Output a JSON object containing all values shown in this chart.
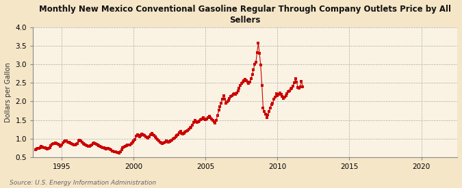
{
  "title": "Monthly New Mexico Conventional Gasoline Regular Through Company Outlets Price by All\nSellers",
  "ylabel": "Dollars per Gallon",
  "source": "Source: U.S. Energy Information Administration",
  "bg_color": "#F5E6C8",
  "plot_bg_color": "#FAF3E3",
  "marker_color": "#CC0000",
  "line_color": "#CC0000",
  "xlim": [
    1993.0,
    2022.5
  ],
  "ylim": [
    0.5,
    4.0
  ],
  "yticks": [
    0.5,
    1.0,
    1.5,
    2.0,
    2.5,
    3.0,
    3.5,
    4.0
  ],
  "xticks": [
    1995,
    2000,
    2005,
    2010,
    2015,
    2020
  ],
  "data": [
    [
      1993.17,
      0.69
    ],
    [
      1993.25,
      0.72
    ],
    [
      1993.33,
      0.74
    ],
    [
      1993.42,
      0.74
    ],
    [
      1993.5,
      0.76
    ],
    [
      1993.58,
      0.8
    ],
    [
      1993.67,
      0.78
    ],
    [
      1993.75,
      0.76
    ],
    [
      1993.83,
      0.75
    ],
    [
      1993.92,
      0.73
    ],
    [
      1994.0,
      0.72
    ],
    [
      1994.08,
      0.74
    ],
    [
      1994.17,
      0.76
    ],
    [
      1994.25,
      0.81
    ],
    [
      1994.33,
      0.84
    ],
    [
      1994.42,
      0.86
    ],
    [
      1994.5,
      0.87
    ],
    [
      1994.58,
      0.88
    ],
    [
      1994.67,
      0.86
    ],
    [
      1994.75,
      0.84
    ],
    [
      1994.83,
      0.82
    ],
    [
      1994.92,
      0.8
    ],
    [
      1995.0,
      0.82
    ],
    [
      1995.08,
      0.88
    ],
    [
      1995.17,
      0.92
    ],
    [
      1995.25,
      0.94
    ],
    [
      1995.33,
      0.93
    ],
    [
      1995.42,
      0.91
    ],
    [
      1995.5,
      0.9
    ],
    [
      1995.58,
      0.88
    ],
    [
      1995.67,
      0.86
    ],
    [
      1995.75,
      0.84
    ],
    [
      1995.83,
      0.83
    ],
    [
      1995.92,
      0.82
    ],
    [
      1996.0,
      0.84
    ],
    [
      1996.08,
      0.87
    ],
    [
      1996.17,
      0.93
    ],
    [
      1996.25,
      0.95
    ],
    [
      1996.33,
      0.93
    ],
    [
      1996.42,
      0.9
    ],
    [
      1996.5,
      0.87
    ],
    [
      1996.58,
      0.85
    ],
    [
      1996.67,
      0.83
    ],
    [
      1996.75,
      0.81
    ],
    [
      1996.83,
      0.8
    ],
    [
      1996.92,
      0.79
    ],
    [
      1997.0,
      0.81
    ],
    [
      1997.08,
      0.83
    ],
    [
      1997.17,
      0.87
    ],
    [
      1997.25,
      0.89
    ],
    [
      1997.33,
      0.87
    ],
    [
      1997.42,
      0.85
    ],
    [
      1997.5,
      0.83
    ],
    [
      1997.58,
      0.81
    ],
    [
      1997.67,
      0.79
    ],
    [
      1997.75,
      0.77
    ],
    [
      1997.83,
      0.76
    ],
    [
      1997.92,
      0.75
    ],
    [
      1998.0,
      0.73
    ],
    [
      1998.08,
      0.72
    ],
    [
      1998.17,
      0.74
    ],
    [
      1998.25,
      0.73
    ],
    [
      1998.33,
      0.71
    ],
    [
      1998.42,
      0.69
    ],
    [
      1998.5,
      0.67
    ],
    [
      1998.58,
      0.66
    ],
    [
      1998.67,
      0.65
    ],
    [
      1998.75,
      0.64
    ],
    [
      1998.83,
      0.63
    ],
    [
      1998.92,
      0.62
    ],
    [
      1999.0,
      0.61
    ],
    [
      1999.08,
      0.64
    ],
    [
      1999.17,
      0.7
    ],
    [
      1999.25,
      0.75
    ],
    [
      1999.33,
      0.77
    ],
    [
      1999.42,
      0.79
    ],
    [
      1999.5,
      0.81
    ],
    [
      1999.58,
      0.83
    ],
    [
      1999.67,
      0.82
    ],
    [
      1999.75,
      0.83
    ],
    [
      1999.83,
      0.86
    ],
    [
      1999.92,
      0.91
    ],
    [
      2000.0,
      0.94
    ],
    [
      2000.08,
      0.97
    ],
    [
      2000.17,
      1.06
    ],
    [
      2000.25,
      1.1
    ],
    [
      2000.33,
      1.08
    ],
    [
      2000.42,
      1.05
    ],
    [
      2000.5,
      1.09
    ],
    [
      2000.58,
      1.12
    ],
    [
      2000.67,
      1.1
    ],
    [
      2000.75,
      1.08
    ],
    [
      2000.83,
      1.05
    ],
    [
      2000.92,
      1.03
    ],
    [
      2001.0,
      1.02
    ],
    [
      2001.08,
      1.05
    ],
    [
      2001.17,
      1.1
    ],
    [
      2001.25,
      1.14
    ],
    [
      2001.33,
      1.1
    ],
    [
      2001.42,
      1.08
    ],
    [
      2001.5,
      1.05
    ],
    [
      2001.58,
      1.02
    ],
    [
      2001.67,
      0.98
    ],
    [
      2001.75,
      0.94
    ],
    [
      2001.83,
      0.91
    ],
    [
      2001.92,
      0.88
    ],
    [
      2002.0,
      0.87
    ],
    [
      2002.08,
      0.89
    ],
    [
      2002.17,
      0.91
    ],
    [
      2002.25,
      0.93
    ],
    [
      2002.33,
      0.92
    ],
    [
      2002.42,
      0.9
    ],
    [
      2002.5,
      0.92
    ],
    [
      2002.58,
      0.94
    ],
    [
      2002.67,
      0.96
    ],
    [
      2002.75,
      0.99
    ],
    [
      2002.83,
      1.01
    ],
    [
      2002.92,
      1.04
    ],
    [
      2003.0,
      1.08
    ],
    [
      2003.08,
      1.11
    ],
    [
      2003.17,
      1.16
    ],
    [
      2003.25,
      1.19
    ],
    [
      2003.33,
      1.14
    ],
    [
      2003.42,
      1.12
    ],
    [
      2003.5,
      1.14
    ],
    [
      2003.58,
      1.18
    ],
    [
      2003.67,
      1.2
    ],
    [
      2003.75,
      1.22
    ],
    [
      2003.83,
      1.25
    ],
    [
      2003.92,
      1.28
    ],
    [
      2004.0,
      1.31
    ],
    [
      2004.08,
      1.36
    ],
    [
      2004.17,
      1.43
    ],
    [
      2004.25,
      1.49
    ],
    [
      2004.33,
      1.46
    ],
    [
      2004.42,
      1.43
    ],
    [
      2004.5,
      1.45
    ],
    [
      2004.58,
      1.48
    ],
    [
      2004.67,
      1.51
    ],
    [
      2004.75,
      1.53
    ],
    [
      2004.83,
      1.56
    ],
    [
      2004.92,
      1.53
    ],
    [
      2005.0,
      1.51
    ],
    [
      2005.08,
      1.53
    ],
    [
      2005.17,
      1.56
    ],
    [
      2005.25,
      1.61
    ],
    [
      2005.33,
      1.56
    ],
    [
      2005.42,
      1.52
    ],
    [
      2005.5,
      1.49
    ],
    [
      2005.58,
      1.45
    ],
    [
      2005.67,
      1.42
    ],
    [
      2005.75,
      1.5
    ],
    [
      2005.83,
      1.62
    ],
    [
      2005.92,
      1.76
    ],
    [
      2006.0,
      1.86
    ],
    [
      2006.08,
      1.96
    ],
    [
      2006.17,
      2.06
    ],
    [
      2006.25,
      2.16
    ],
    [
      2006.33,
      2.06
    ],
    [
      2006.42,
      1.96
    ],
    [
      2006.5,
      1.99
    ],
    [
      2006.58,
      2.03
    ],
    [
      2006.67,
      2.09
    ],
    [
      2006.75,
      2.13
    ],
    [
      2006.83,
      2.16
    ],
    [
      2006.92,
      2.19
    ],
    [
      2007.0,
      2.21
    ],
    [
      2007.08,
      2.19
    ],
    [
      2007.17,
      2.23
    ],
    [
      2007.25,
      2.29
    ],
    [
      2007.33,
      2.36
    ],
    [
      2007.42,
      2.43
    ],
    [
      2007.5,
      2.49
    ],
    [
      2007.58,
      2.53
    ],
    [
      2007.67,
      2.56
    ],
    [
      2007.75,
      2.59
    ],
    [
      2007.83,
      2.56
    ],
    [
      2007.92,
      2.53
    ],
    [
      2008.0,
      2.49
    ],
    [
      2008.08,
      2.53
    ],
    [
      2008.17,
      2.61
    ],
    [
      2008.25,
      2.73
    ],
    [
      2008.33,
      2.86
    ],
    [
      2008.42,
      3.01
    ],
    [
      2008.5,
      3.05
    ],
    [
      2008.58,
      3.32
    ],
    [
      2008.67,
      3.57
    ],
    [
      2008.75,
      3.29
    ],
    [
      2008.83,
      2.98
    ],
    [
      2008.92,
      2.44
    ],
    [
      2009.0,
      1.83
    ],
    [
      2009.08,
      1.74
    ],
    [
      2009.17,
      1.65
    ],
    [
      2009.25,
      1.56
    ],
    [
      2009.33,
      1.63
    ],
    [
      2009.42,
      1.73
    ],
    [
      2009.5,
      1.83
    ],
    [
      2009.58,
      1.91
    ],
    [
      2009.67,
      1.96
    ],
    [
      2009.75,
      2.06
    ],
    [
      2009.83,
      2.11
    ],
    [
      2009.92,
      2.21
    ],
    [
      2010.0,
      2.16
    ],
    [
      2010.08,
      2.19
    ],
    [
      2010.17,
      2.23
    ],
    [
      2010.25,
      2.19
    ],
    [
      2010.33,
      2.13
    ],
    [
      2010.42,
      2.09
    ],
    [
      2010.5,
      2.11
    ],
    [
      2010.58,
      2.16
    ],
    [
      2010.67,
      2.21
    ],
    [
      2010.75,
      2.26
    ],
    [
      2010.83,
      2.29
    ],
    [
      2010.92,
      2.33
    ],
    [
      2011.0,
      2.36
    ],
    [
      2011.08,
      2.41
    ],
    [
      2011.17,
      2.51
    ],
    [
      2011.25,
      2.61
    ],
    [
      2011.33,
      2.52
    ],
    [
      2011.42,
      2.38
    ],
    [
      2011.5,
      2.35
    ],
    [
      2011.58,
      2.4
    ],
    [
      2011.67,
      2.55
    ],
    [
      2011.75,
      2.4
    ]
  ]
}
